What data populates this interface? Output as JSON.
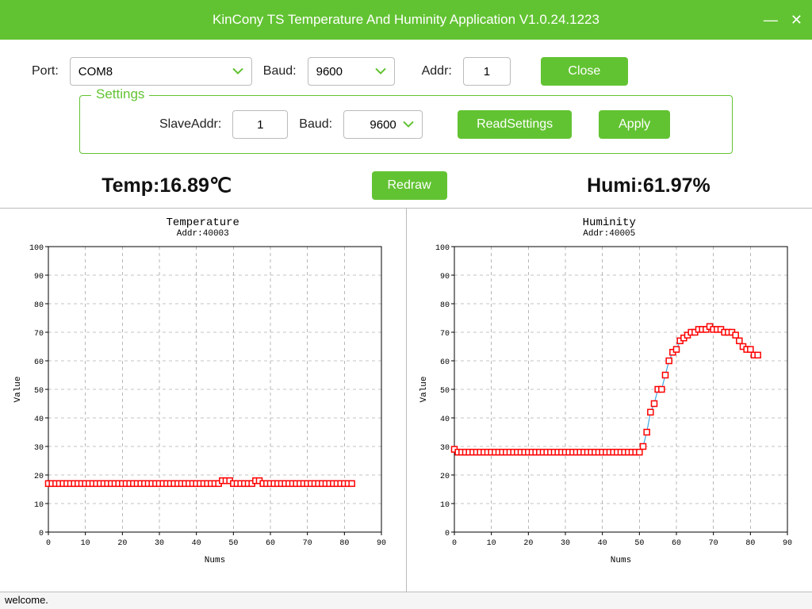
{
  "window": {
    "title": "KinCony TS Temperature And Huminity Application V1.0.24.1223",
    "accent": "#62c332"
  },
  "topbar": {
    "port_label": "Port:",
    "port_value": "COM8",
    "baud_label": "Baud:",
    "baud_value": "9600",
    "addr_label": "Addr:",
    "addr_value": "1",
    "close_btn": "Close"
  },
  "settings": {
    "legend": "Settings",
    "slaveaddr_label": "SlaveAddr:",
    "slaveaddr_value": "1",
    "baud_label": "Baud:",
    "baud_value": "9600",
    "read_btn": "ReadSettings",
    "apply_btn": "Apply"
  },
  "readings": {
    "temp_label": "Temp:16.89℃",
    "redraw_btn": "Redraw",
    "humi_label": "Humi:61.97%"
  },
  "chart_common": {
    "xlim": [
      0,
      90
    ],
    "ylim": [
      0,
      100
    ],
    "xtick_step": 10,
    "ytick_step": 10,
    "xlabel": "Nums",
    "ylabel": "Value",
    "grid_color": "#888888",
    "axis_color": "#000000",
    "background": "#ffffff",
    "marker_stroke": "#ff0000",
    "marker_fill": "#ffffff",
    "line_color": "#3ba8e6",
    "marker_size": 7,
    "tick_font": "Courier New",
    "tick_fontsize": 10,
    "label_fontsize": 11,
    "title_fontsize": 14
  },
  "temp_chart": {
    "title": "Temperature",
    "subtitle": "Addr:40003",
    "type": "line-scatter",
    "x": [
      0,
      1,
      2,
      3,
      4,
      5,
      6,
      7,
      8,
      9,
      10,
      11,
      12,
      13,
      14,
      15,
      16,
      17,
      18,
      19,
      20,
      21,
      22,
      23,
      24,
      25,
      26,
      27,
      28,
      29,
      30,
      31,
      32,
      33,
      34,
      35,
      36,
      37,
      38,
      39,
      40,
      41,
      42,
      43,
      44,
      45,
      46,
      47,
      48,
      49,
      50,
      51,
      52,
      53,
      54,
      55,
      56,
      57,
      58,
      59,
      60,
      61,
      62,
      63,
      64,
      65,
      66,
      67,
      68,
      69,
      70,
      71,
      72,
      73,
      74,
      75,
      76,
      77,
      78,
      79,
      80,
      81,
      82
    ],
    "y": [
      17,
      17,
      17,
      17,
      17,
      17,
      17,
      17,
      17,
      17,
      17,
      17,
      17,
      17,
      17,
      17,
      17,
      17,
      17,
      17,
      17,
      17,
      17,
      17,
      17,
      17,
      17,
      17,
      17,
      17,
      17,
      17,
      17,
      17,
      17,
      17,
      17,
      17,
      17,
      17,
      17,
      17,
      17,
      17,
      17,
      17,
      17,
      18,
      18,
      18,
      17,
      17,
      17,
      17,
      17,
      17,
      18,
      18,
      17,
      17,
      17,
      17,
      17,
      17,
      17,
      17,
      17,
      17,
      17,
      17,
      17,
      17,
      17,
      17,
      17,
      17,
      17,
      17,
      17,
      17,
      17,
      17,
      17
    ]
  },
  "humi_chart": {
    "title": "Huminity",
    "subtitle": "Addr:40005",
    "type": "line-scatter",
    "x": [
      0,
      1,
      2,
      3,
      4,
      5,
      6,
      7,
      8,
      9,
      10,
      11,
      12,
      13,
      14,
      15,
      16,
      17,
      18,
      19,
      20,
      21,
      22,
      23,
      24,
      25,
      26,
      27,
      28,
      29,
      30,
      31,
      32,
      33,
      34,
      35,
      36,
      37,
      38,
      39,
      40,
      41,
      42,
      43,
      44,
      45,
      46,
      47,
      48,
      49,
      50,
      51,
      52,
      53,
      54,
      55,
      56,
      57,
      58,
      59,
      60,
      61,
      62,
      63,
      64,
      65,
      66,
      67,
      68,
      69,
      70,
      71,
      72,
      73,
      74,
      75,
      76,
      77,
      78,
      79,
      80,
      81,
      82
    ],
    "y": [
      29,
      28,
      28,
      28,
      28,
      28,
      28,
      28,
      28,
      28,
      28,
      28,
      28,
      28,
      28,
      28,
      28,
      28,
      28,
      28,
      28,
      28,
      28,
      28,
      28,
      28,
      28,
      28,
      28,
      28,
      28,
      28,
      28,
      28,
      28,
      28,
      28,
      28,
      28,
      28,
      28,
      28,
      28,
      28,
      28,
      28,
      28,
      28,
      28,
      28,
      28,
      30,
      35,
      42,
      45,
      50,
      50,
      55,
      60,
      63,
      64,
      67,
      68,
      69,
      70,
      70,
      71,
      71,
      71,
      72,
      71,
      71,
      71,
      70,
      70,
      70,
      69,
      67,
      65,
      64,
      64,
      62,
      62
    ]
  },
  "status": {
    "text": "welcome."
  }
}
